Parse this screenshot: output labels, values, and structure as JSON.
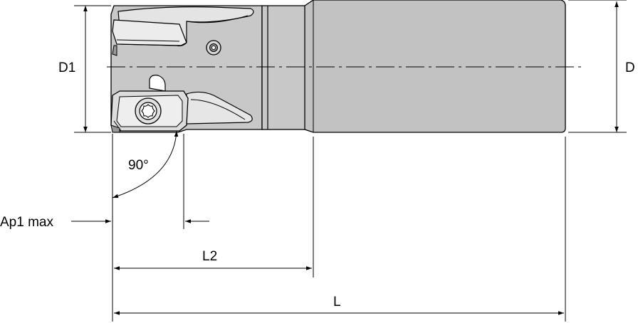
{
  "labels": {
    "d1": "D1",
    "d": "D",
    "angle": "90°",
    "ap1_max": "Ap1 max",
    "l2": "L2",
    "l": "L"
  },
  "colors": {
    "body_fill": "#c8c8c8",
    "shank_fill": "#c2c2c2",
    "insert_fill": "#dcdcdc",
    "line": "#000000",
    "background": "#ffffff"
  }
}
